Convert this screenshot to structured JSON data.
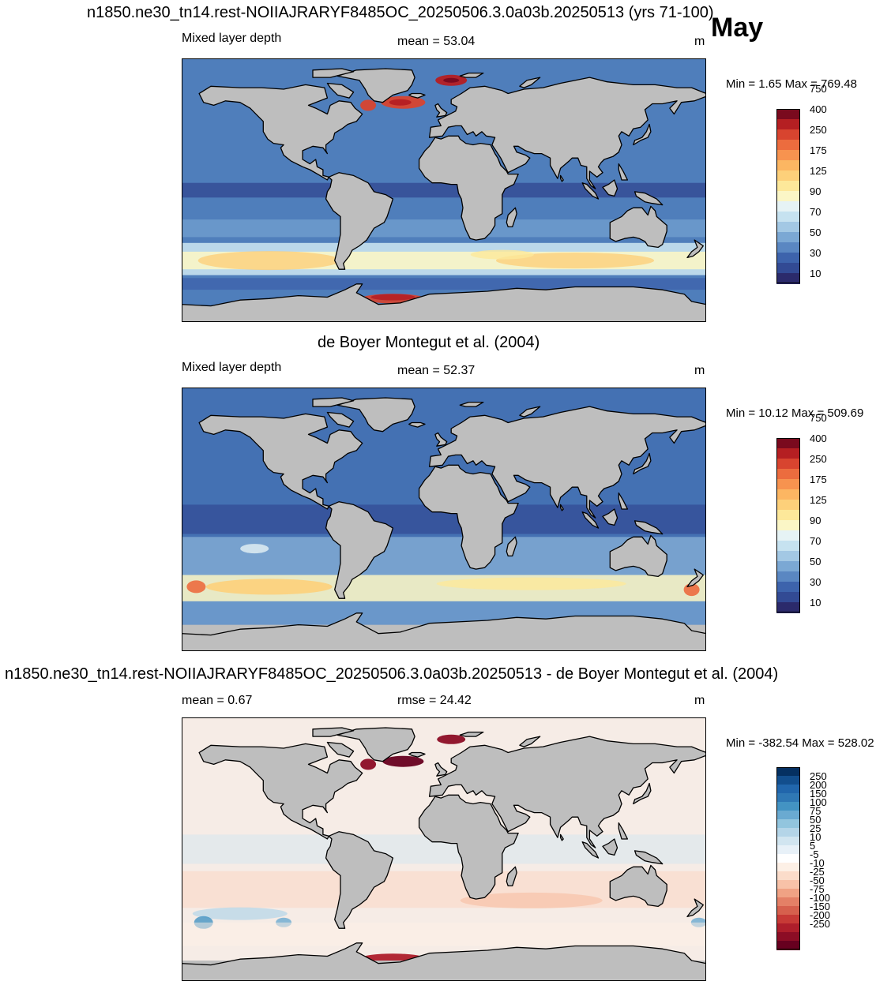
{
  "month": "May",
  "panels": [
    {
      "id": "model",
      "title": "n1850.ne30_tn14.rest-NOIIAJRARYF8485OC_20250506.3.0a03b.20250513 (yrs 71-100)",
      "left_label": "Mixed layer depth",
      "center_label": "mean =  53.04",
      "units": "m",
      "minmax": "Min =   1.65 Max = 769.48"
    },
    {
      "id": "obs",
      "title": "de Boyer Montegut et al. (2004)",
      "left_label": "Mixed layer depth",
      "center_label": "mean =  52.37",
      "units": "m",
      "minmax": "Min =  10.12 Max = 509.69"
    },
    {
      "id": "diff",
      "title": "n1850.ne30_tn14.rest-NOIIAJRARYF8485OC_20250506.3.0a03b.20250513 - de Boyer Montegut et al. (2004)",
      "left_label": "mean =   0.67",
      "center_label": "rmse =  24.42",
      "units": "m",
      "minmax": "Min = -382.54 Max = 528.02"
    }
  ],
  "chart_data": [
    {
      "type": "heatmap",
      "title": "n1850.ne30_tn14.rest-NOIIAJRARYF8485OC_20250506.3.0a03b.20250513 (yrs 71-100)",
      "variable": "Mixed layer depth",
      "units": "m",
      "mean": 53.04,
      "min": 1.65,
      "max": 769.48,
      "colorbar": {
        "labels": [
          "10",
          "30",
          "50",
          "70",
          "90",
          "125",
          "175",
          "250",
          "400",
          "750"
        ],
        "colors": [
          "#2b2a6b",
          "#324a94",
          "#3d63ac",
          "#5a87c2",
          "#7ba8d4",
          "#a3c8e4",
          "#c6e2f0",
          "#e6f3f5",
          "#fbf6c6",
          "#fde89a",
          "#fdd07a",
          "#fcb662",
          "#f7934f",
          "#ec6c3e",
          "#d8442f",
          "#b51f22",
          "#7a0a1e"
        ]
      }
    },
    {
      "type": "heatmap",
      "title": "de Boyer Montegut et al. (2004)",
      "variable": "Mixed layer depth",
      "units": "m",
      "mean": 52.37,
      "min": 10.12,
      "max": 509.69,
      "colorbar": {
        "labels": [
          "10",
          "30",
          "50",
          "70",
          "90",
          "125",
          "175",
          "250",
          "400",
          "750"
        ],
        "colors": [
          "#2b2a6b",
          "#324a94",
          "#3d63ac",
          "#5a87c2",
          "#7ba8d4",
          "#a3c8e4",
          "#c6e2f0",
          "#e6f3f5",
          "#fbf6c6",
          "#fde89a",
          "#fdd07a",
          "#fcb662",
          "#f7934f",
          "#ec6c3e",
          "#d8442f",
          "#b51f22",
          "#7a0a1e"
        ]
      }
    },
    {
      "type": "heatmap",
      "title": "n1850.ne30_tn14.rest-NOIIAJRARYF8485OC_20250506.3.0a03b.20250513 - de Boyer Montegut et al. (2004)",
      "units": "m",
      "mean": 0.67,
      "rmse": 24.42,
      "min": -382.54,
      "max": 528.02,
      "colorbar": {
        "labels": [
          "250",
          "200",
          "150",
          "100",
          "75",
          "50",
          "25",
          "10",
          "5",
          "-5",
          "-10",
          "-25",
          "-50",
          "-75",
          "-100",
          "-150",
          "-200",
          "-250"
        ],
        "colors": [
          "#67001f",
          "#8c0d25",
          "#ae1e2b",
          "#c73a36",
          "#d6604d",
          "#e48066",
          "#f0a284",
          "#f8c2a8",
          "#fbdcca",
          "#fdf0e6",
          "#ffffff",
          "#e8f1f8",
          "#d1e5f0",
          "#b4d5e8",
          "#92c5de",
          "#6aaad1",
          "#4393c3",
          "#2f78b5",
          "#2166ac",
          "#124e8d",
          "#053061"
        ]
      }
    }
  ],
  "colors": {
    "land": "#bebebe",
    "ocean_model": "#4f7ebb",
    "ocean_obs": "#4471b3",
    "ocean_diff": "#f6ece6"
  }
}
